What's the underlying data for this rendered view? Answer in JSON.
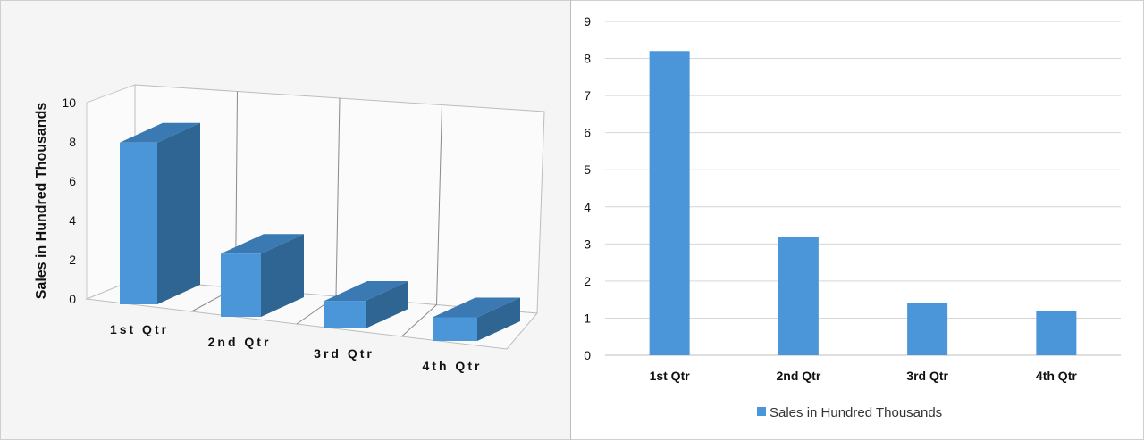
{
  "chart_data": [
    {
      "type": "bar",
      "variant": "3d-column",
      "categories": [
        "1st Qtr",
        "2nd Qtr",
        "3rd Qtr",
        "4th Qtr"
      ],
      "series": [
        {
          "name": "Sales in Hundred Thousands",
          "values": [
            8.2,
            3.2,
            1.4,
            1.2
          ]
        }
      ],
      "title": "",
      "xlabel": "",
      "ylabel": "Sales in Hundred Thousands",
      "ylim": [
        0,
        10
      ],
      "yticks": [
        0,
        2,
        4,
        6,
        8,
        10
      ],
      "grid": true,
      "legend": false,
      "colors": {
        "front": "#4a96d8",
        "side": "#2f6592",
        "top": "#3a79b2"
      }
    },
    {
      "type": "bar",
      "categories": [
        "1st Qtr",
        "2nd Qtr",
        "3rd Qtr",
        "4th Qtr"
      ],
      "series": [
        {
          "name": "Sales in Hundred Thousands",
          "values": [
            8.2,
            3.2,
            1.4,
            1.2
          ]
        }
      ],
      "title": "",
      "xlabel": "",
      "ylabel": "",
      "ylim": [
        0,
        9
      ],
      "yticks": [
        0,
        1,
        2,
        3,
        4,
        5,
        6,
        7,
        8,
        9
      ],
      "grid": true,
      "legend": "bottom",
      "colors": {
        "bar": "#4a96d8"
      }
    }
  ]
}
